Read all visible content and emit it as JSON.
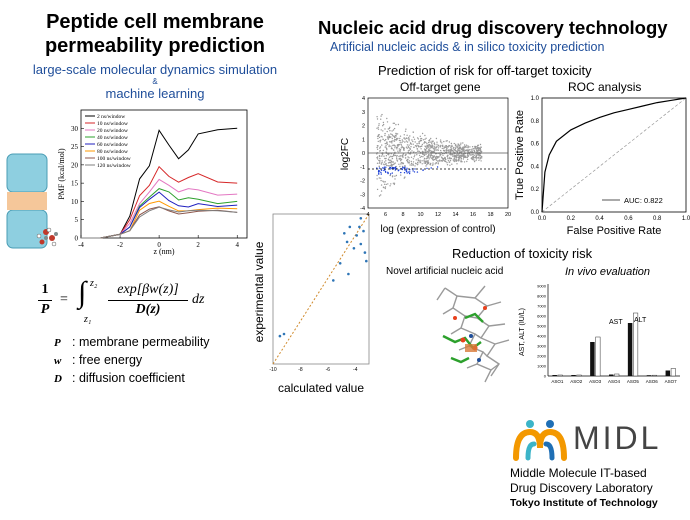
{
  "left": {
    "title_line1": "Peptide cell membrane",
    "title_line2": "permeability prediction",
    "subtitle_line1": "large-scale molecular dynamics simulation",
    "subtitle_amp": "&",
    "subtitle_line2": "machine learning",
    "pmf_ylabel": "PMF (kcal/mol)",
    "pmf_xlabel": "z (nm)",
    "pmf_yticks": [
      "30",
      "25",
      "20",
      "15",
      "10",
      "5",
      "0"
    ],
    "pmf_xticks": [
      "-4",
      "-2",
      "0",
      "2",
      "4"
    ],
    "pmf_legend": [
      "2 ns/window",
      "10 ns/window",
      "20 ns/window",
      "40 ns/window",
      "60 ns/window",
      "80 ns/window",
      "100 ns/window",
      "120 ns/window"
    ],
    "pmf_colors": [
      "#000000",
      "#d62728",
      "#e377c2",
      "#2ca02c",
      "#1f1fbf",
      "#ff9900",
      "#8c564b",
      "#7f7f7f"
    ],
    "scatter_ylabel": "experimental value",
    "scatter_xlabel": "calculated value",
    "scatter_xticks": [
      "-10",
      "-8",
      "-6",
      "-4"
    ],
    "formula_lhs_num": "1",
    "formula_lhs_den": "P",
    "formula_eq": "=",
    "formula_upper": "z₂",
    "formula_lower": "z₁",
    "formula_num": "exp[βw(z)]",
    "formula_den": "D(z)",
    "formula_dz": "dz",
    "defs": [
      {
        "sym": "P",
        "text": ": membrane permeability"
      },
      {
        "sym": "w",
        "text": ": free energy"
      },
      {
        "sym": "D",
        "text": ": diffusion coefficient"
      }
    ]
  },
  "right": {
    "title": "Nucleic acid drug discovery technology",
    "subtitle": "Artificial nucleic acids & in silico toxicity prediction",
    "risk_title": "Prediction of risk for off-target toxicity",
    "offtarget_title": "Off-target gene",
    "offtarget_ylabel": "log2FC",
    "offtarget_xlabel": "log (expression of control)",
    "offtarget_xticks": [
      "4",
      "6",
      "8",
      "10",
      "12",
      "14",
      "16",
      "18",
      "20"
    ],
    "offtarget_yticks": [
      "4",
      "3",
      "2",
      "1",
      "0",
      "-1",
      "-2",
      "-3",
      "-4"
    ],
    "roc_title": "ROC analysis",
    "roc_ylabel": "True Positive Rate",
    "roc_xlabel": "False Positive Rate",
    "roc_ticks": [
      "0.0",
      "0.2",
      "0.4",
      "0.6",
      "0.8",
      "1.0"
    ],
    "roc_auc": "AUC: 0.822",
    "reduction_title": "Reduction of toxicity risk",
    "novel_label": "Novel artificial nucleic acid",
    "invivo_label": "In vivo evaluation",
    "bar_ylabel": "AST, ALT (IU/L)",
    "bar_yticks": [
      "9000",
      "8000",
      "7000",
      "6000",
      "5000",
      "4000",
      "3000",
      "2000",
      "1000",
      "0"
    ],
    "bar_ast": "AST",
    "bar_alt": "ALT"
  },
  "chart_data": [
    {
      "type": "line",
      "title": "",
      "xlabel": "z (nm)",
      "ylabel": "PMF (kcal/mol)",
      "xlim": [
        -4,
        4.5
      ],
      "ylim": [
        0,
        35
      ],
      "x": [
        -4,
        -3,
        -2,
        -1.5,
        -1,
        -0.5,
        0,
        0.5,
        1,
        1.5,
        2,
        3,
        4
      ],
      "series": [
        {
          "name": "2 ns/window",
          "values": [
            0,
            0,
            1,
            6,
            16,
            20,
            30,
            26,
            22,
            24,
            28,
            29,
            30
          ]
        },
        {
          "name": "10 ns/window",
          "values": [
            0,
            0,
            1,
            5,
            12,
            15,
            20,
            17,
            15,
            16,
            17,
            15,
            15
          ]
        },
        {
          "name": "20 ns/window",
          "values": [
            0,
            0,
            1,
            4,
            10,
            13,
            16,
            14,
            12,
            13,
            13,
            12,
            12
          ]
        },
        {
          "name": "40 ns/window",
          "values": [
            0,
            0,
            1,
            3,
            9,
            11,
            13,
            12,
            10,
            11,
            11,
            10,
            10
          ]
        },
        {
          "name": "60 ns/window",
          "values": [
            0,
            0,
            1,
            3,
            8,
            10,
            12,
            10,
            9,
            9,
            10,
            9,
            9
          ]
        },
        {
          "name": "80 ns/window",
          "values": [
            0,
            0,
            1,
            2,
            7,
            9,
            10,
            9,
            8,
            8,
            8,
            8,
            8
          ]
        },
        {
          "name": "100 ns/window",
          "values": [
            0,
            0,
            1,
            2,
            6,
            8,
            9,
            8,
            7,
            7,
            7,
            7,
            7
          ]
        },
        {
          "name": "120 ns/window",
          "values": [
            0,
            0,
            1,
            2,
            6,
            8,
            9,
            8,
            7,
            7,
            7,
            7,
            7
          ]
        }
      ]
    },
    {
      "type": "scatter",
      "xlabel": "calculated value",
      "ylabel": "experimental value",
      "xlim": [
        -10,
        -3
      ],
      "ylim": [
        -10,
        -3
      ],
      "points": [
        [
          -9.5,
          -8.7
        ],
        [
          -9.2,
          -8.6
        ],
        [
          -5.6,
          -6.1
        ],
        [
          -5.1,
          -5.3
        ],
        [
          -4.8,
          -3.9
        ],
        [
          -4.6,
          -4.3
        ],
        [
          -4.4,
          -3.6
        ],
        [
          -4.1,
          -4.6
        ],
        [
          -3.9,
          -4.0
        ],
        [
          -3.7,
          -3.6
        ],
        [
          -3.6,
          -4.4
        ],
        [
          -3.4,
          -3.8
        ],
        [
          -3.3,
          -4.8
        ],
        [
          -3.2,
          -5.2
        ],
        [
          -3.6,
          -3.2
        ],
        [
          -4.5,
          -5.8
        ]
      ]
    },
    {
      "type": "scatter",
      "title": "Off-target gene",
      "xlabel": "log (expression of control)",
      "ylabel": "log2FC",
      "xlim": [
        4,
        20
      ],
      "ylim": [
        -4,
        4
      ]
    },
    {
      "type": "line",
      "title": "ROC analysis",
      "xlabel": "False Positive Rate",
      "ylabel": "True Positive Rate",
      "xlim": [
        0,
        1
      ],
      "ylim": [
        0,
        1
      ],
      "x": [
        0,
        0.02,
        0.05,
        0.1,
        0.2,
        0.3,
        0.4,
        0.5,
        0.6,
        0.7,
        0.8,
        0.9,
        1.0
      ],
      "series": [
        {
          "name": "AUC: 0.822",
          "values": [
            0,
            0.35,
            0.5,
            0.62,
            0.72,
            0.78,
            0.83,
            0.87,
            0.9,
            0.93,
            0.96,
            0.98,
            1.0
          ]
        }
      ]
    },
    {
      "type": "bar",
      "xlabel": "",
      "ylabel": "AST, ALT (IU/L)",
      "categories": [
        "ASO1",
        "ASO2",
        "ASO3",
        "ASO4",
        "ASO5",
        "ASO6",
        "ASO7"
      ],
      "ylim": [
        0,
        9000
      ],
      "series": [
        {
          "name": "AST",
          "values": [
            100,
            100,
            3400,
            150,
            5300,
            80,
            550
          ]
        },
        {
          "name": "ALT",
          "values": [
            100,
            100,
            3900,
            200,
            6300,
            80,
            750
          ]
        }
      ]
    }
  ],
  "logo": {
    "name": "MIDL",
    "line1": "Middle Molecule IT-based",
    "line2": "Drug Discovery Laboratory",
    "line3": "Tokyo Institute of Technology",
    "colors": [
      "#f39800",
      "#3cb4c8",
      "#1f6fb5",
      "#1f4e9a"
    ]
  }
}
